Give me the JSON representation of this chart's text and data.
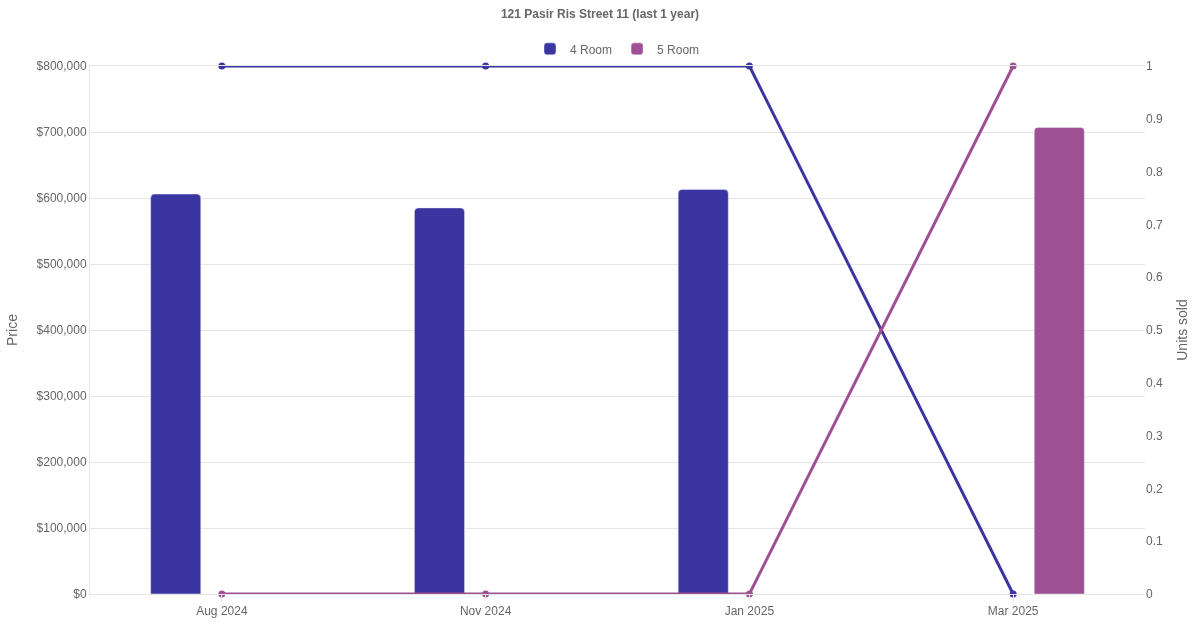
{
  "chart_data": {
    "type": "bar",
    "title": "121 Pasir Ris Street 11 (last 1 year)",
    "categories": [
      "Aug 2024",
      "Nov 2024",
      "Jan 2025",
      "Mar 2025"
    ],
    "series": [
      {
        "name": "4 Room",
        "color": "#3a35a0",
        "values": [
          606000,
          585000,
          613000,
          null
        ]
      },
      {
        "name": "5 Room",
        "color": "#9f5094",
        "values": [
          null,
          null,
          null,
          707000
        ]
      },
      {
        "type": "line",
        "axis": "y2",
        "color": "#3a35a0",
        "values": [
          1,
          1,
          1,
          0
        ]
      },
      {
        "type": "line",
        "axis": "y2",
        "color": "#9f5094",
        "values": [
          0,
          0,
          0,
          1
        ]
      }
    ],
    "ylabel": "Price",
    "y2label": "Units sold",
    "ylim": [
      0,
      800000
    ],
    "yticks": [
      {
        "value": 0,
        "label": "$0"
      },
      {
        "value": 100000,
        "label": "$100,000"
      },
      {
        "value": 200000,
        "label": "$200,000"
      },
      {
        "value": 300000,
        "label": "$300,000"
      },
      {
        "value": 400000,
        "label": "$400,000"
      },
      {
        "value": 500000,
        "label": "$500,000"
      },
      {
        "value": 600000,
        "label": "$600,000"
      },
      {
        "value": 700000,
        "label": "$700,000"
      },
      {
        "value": 800000,
        "label": "$800,000"
      }
    ],
    "y2lim": [
      0,
      1
    ],
    "y2ticks": [
      0,
      0.1,
      0.2,
      0.3,
      0.4,
      0.5,
      0.6,
      0.7,
      0.8,
      0.9,
      1
    ],
    "grid": "y",
    "legend": "top",
    "marker": "circle"
  }
}
